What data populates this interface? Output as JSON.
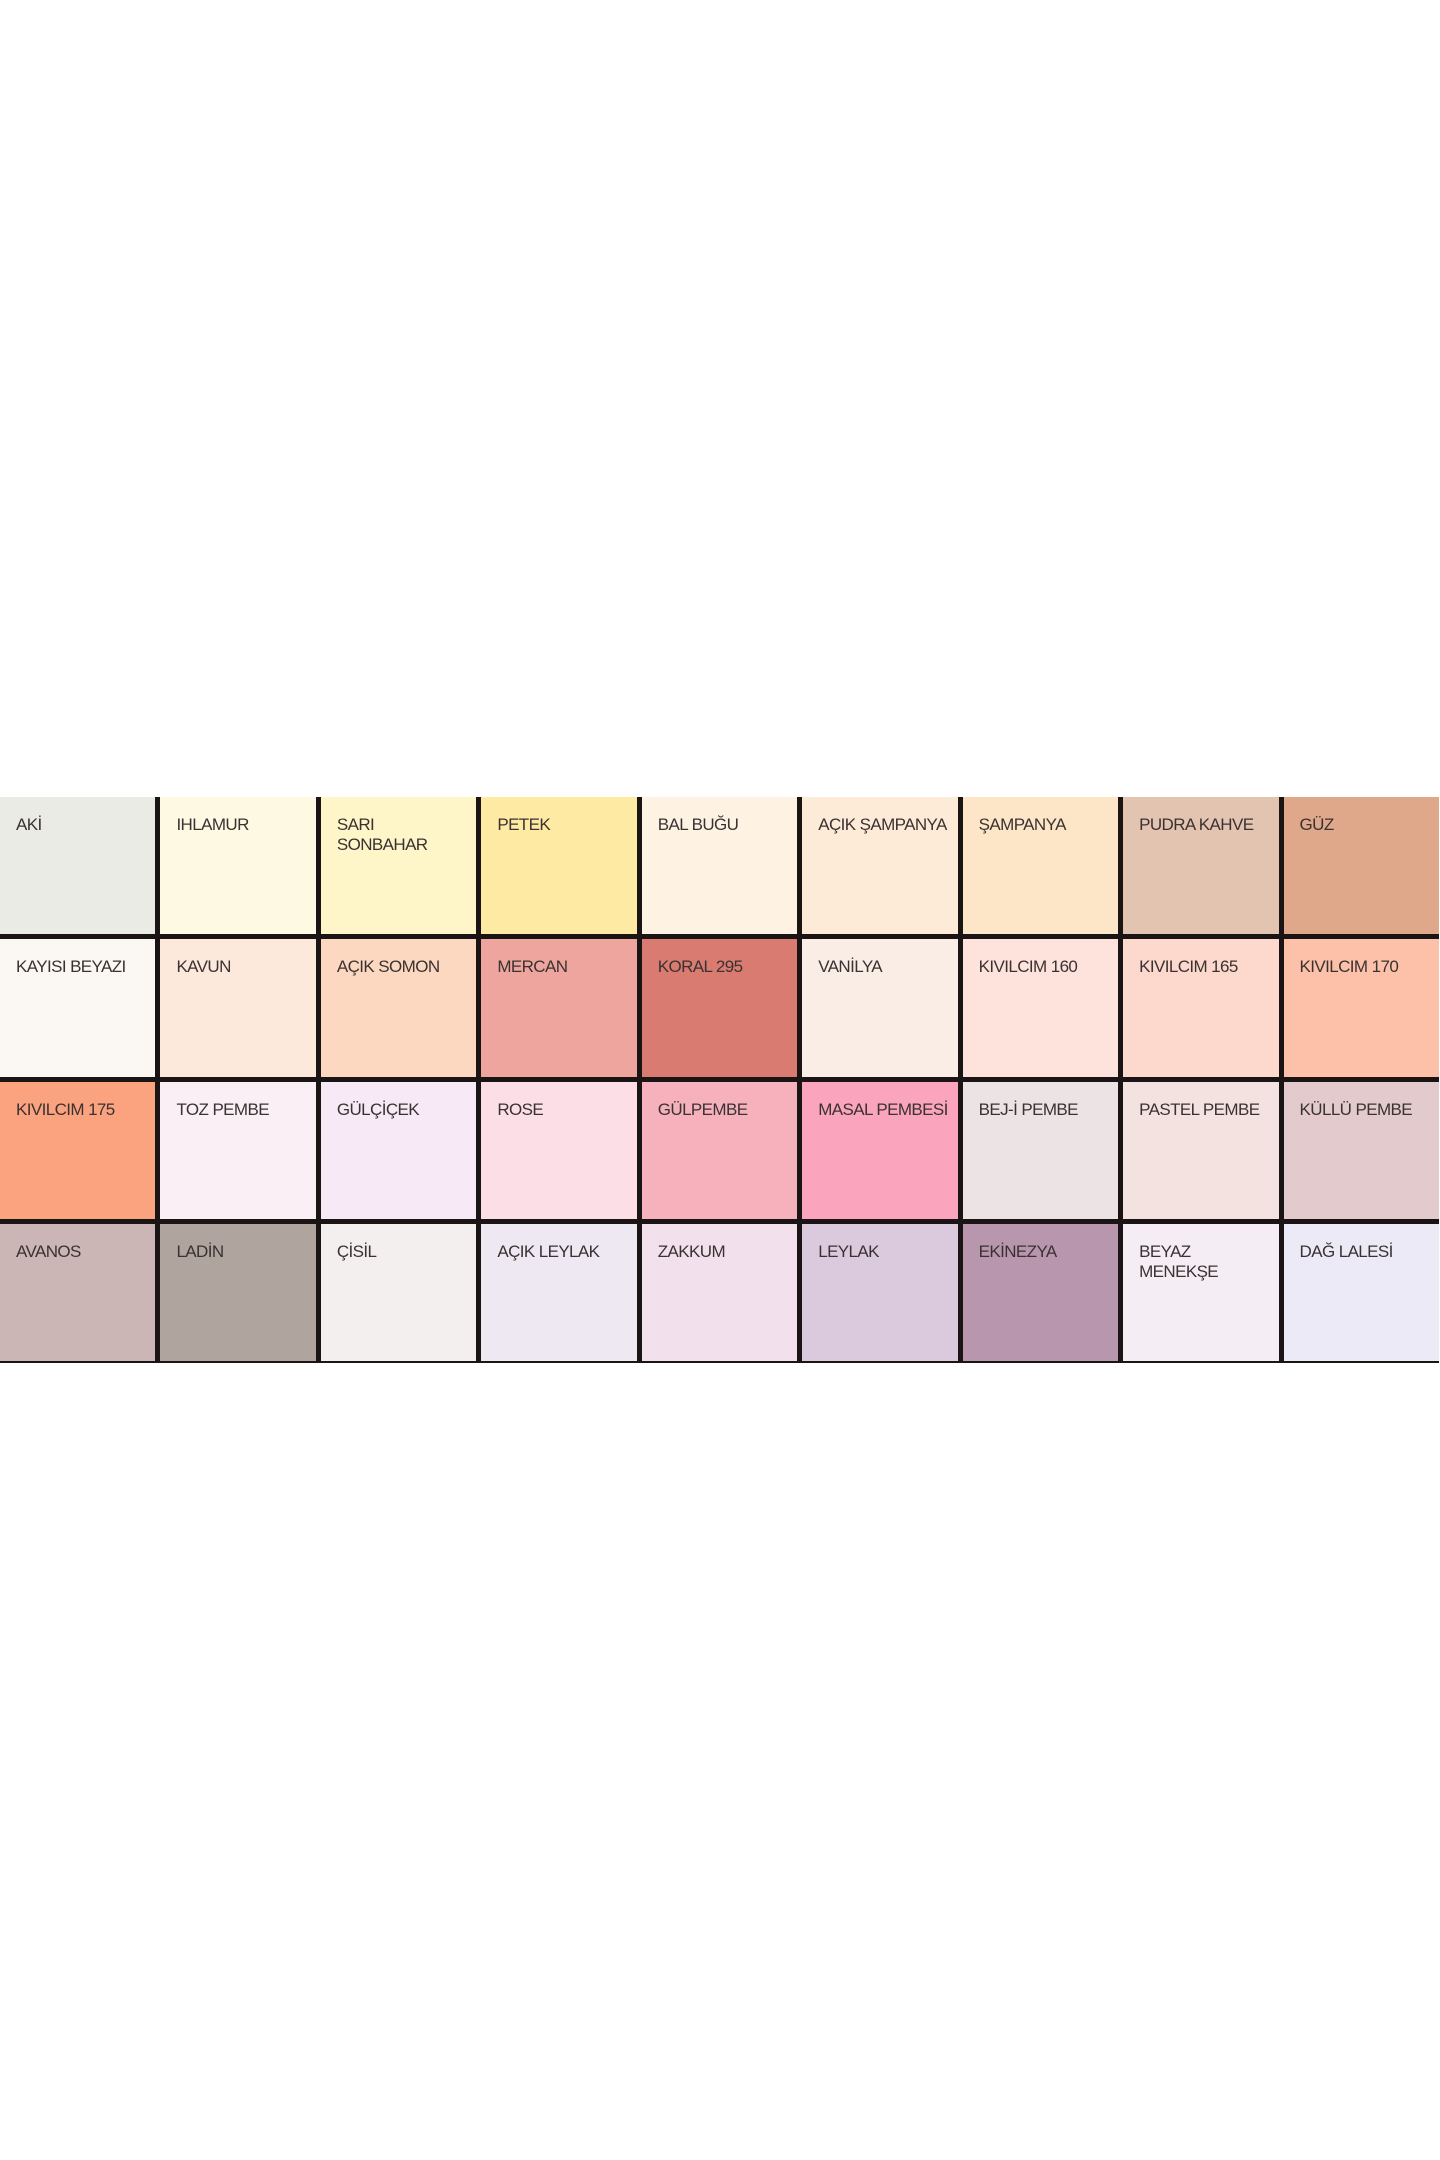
{
  "swatches": [
    {
      "name": "AKİ",
      "color": "#ebebe5"
    },
    {
      "name": "IHLAMUR",
      "color": "#fef9e2"
    },
    {
      "name": "SARI\nSONBAHAR",
      "color": "#fef5c8"
    },
    {
      "name": "PETEK",
      "color": "#feeaa2"
    },
    {
      "name": "BAL BUĞU",
      "color": "#fef3e3"
    },
    {
      "name": "AÇIK ŞAMPANYA",
      "color": "#fdebd8"
    },
    {
      "name": "ŞAMPANYA",
      "color": "#fde6c7"
    },
    {
      "name": "PUDRA KAHVE",
      "color": "#e2c4b0"
    },
    {
      "name": "GÜZ",
      "color": "#dfa88a"
    },
    {
      "name": "KAYISI BEYAZI",
      "color": "#fbf7f3"
    },
    {
      "name": "KAVUN",
      "color": "#fde8dc"
    },
    {
      "name": "AÇIK SOMON",
      "color": "#fcd8c0"
    },
    {
      "name": "MERCAN",
      "color": "#eea59e"
    },
    {
      "name": "KORAL 295",
      "color": "#d97b70"
    },
    {
      "name": "VANİLYA",
      "color": "#f9ede6"
    },
    {
      "name": "KIVILCIM 160",
      "color": "#fde3dc"
    },
    {
      "name": "KIVILCIM 165",
      "color": "#fdd8cc"
    },
    {
      "name": "KIVILCIM 170",
      "color": "#fdc0a8"
    },
    {
      "name": "KIVILCIM 175",
      "color": "#fba27f"
    },
    {
      "name": "TOZ PEMBE",
      "color": "#f9eff5"
    },
    {
      "name": "GÜLÇİÇEK",
      "color": "#f7e9f5"
    },
    {
      "name": "ROSE",
      "color": "#fcdfe6"
    },
    {
      "name": "GÜLPEMBE",
      "color": "#f6b1bd"
    },
    {
      "name": "MASAL PEMBESİ",
      "color": "#fba4be"
    },
    {
      "name": "BEJ-İ PEMBE",
      "color": "#ece3e4"
    },
    {
      "name": "PASTEL PEMBE",
      "color": "#f3e2df"
    },
    {
      "name": "KÜLLÜ PEMBE",
      "color": "#e2cacd"
    },
    {
      "name": "AVANOS",
      "color": "#cbb5b5"
    },
    {
      "name": "LADİN",
      "color": "#b0a49e"
    },
    {
      "name": "ÇİSİL",
      "color": "#f2efee"
    },
    {
      "name": "AÇIK LEYLAK",
      "color": "#eee8f2"
    },
    {
      "name": "ZAKKUM",
      "color": "#f2e1ec"
    },
    {
      "name": "LEYLAK",
      "color": "#dbcadd"
    },
    {
      "name": "EKİNEZYA",
      "color": "#b896ae"
    },
    {
      "name": "BEYAZ\nMENEKŞE",
      "color": "#f4edf4"
    },
    {
      "name": "DAĞ LALESİ",
      "color": "#eceaf6"
    }
  ]
}
